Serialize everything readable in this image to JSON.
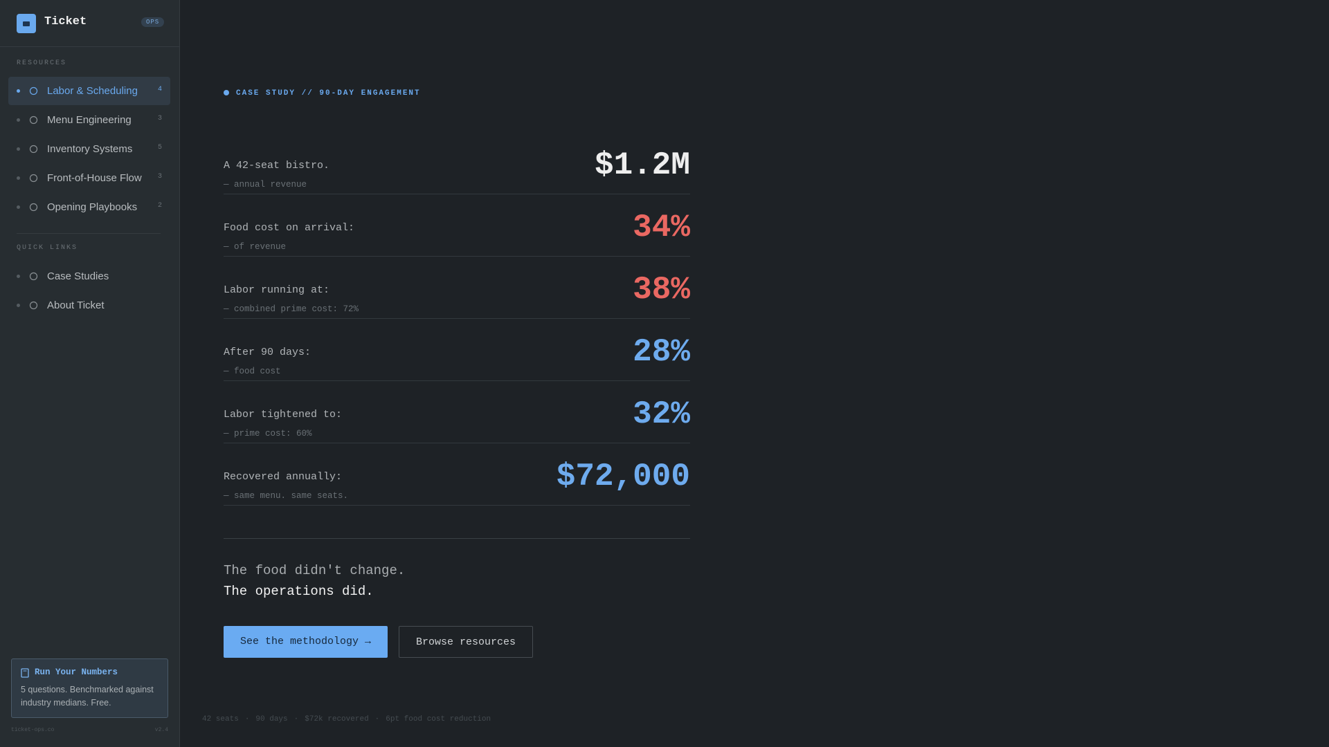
{
  "sidebar": {
    "brand": "Ticket",
    "badge": "OPS",
    "sections": [
      {
        "title": "RESOURCES",
        "items": [
          {
            "label": "Labor & Scheduling",
            "count": "4"
          },
          {
            "label": "Menu Engineering",
            "count": "3"
          },
          {
            "label": "Inventory Systems",
            "count": "5"
          },
          {
            "label": "Front-of-House Flow",
            "count": "3"
          },
          {
            "label": "Opening Playbooks",
            "count": "2"
          }
        ]
      },
      {
        "title": "QUICK LINKS",
        "items": [
          {
            "label": "Case Studies"
          },
          {
            "label": "About Ticket"
          }
        ]
      }
    ],
    "promo": {
      "title": "Run Your Numbers",
      "text": "5 questions. Benchmarked against industry medians. Free."
    },
    "footer": {
      "site": "ticket-ops.co",
      "version": "v2.4"
    }
  },
  "main": {
    "eyebrow": "CASE STUDY // 90-DAY ENGAGEMENT",
    "stats": [
      {
        "label": "A 42-seat bistro.",
        "sub": "— annual revenue",
        "value": "$1.2M"
      },
      {
        "label": "Food cost on arrival:",
        "sub": "— of revenue",
        "value": "34%"
      },
      {
        "label": "Labor running at:",
        "sub": "— combined prime cost: 72%",
        "value": "38%"
      },
      {
        "label": "After 90 days:",
        "sub": "— food cost",
        "value": "28%"
      },
      {
        "label": "Labor tightened to:",
        "sub": "— prime cost: 60%",
        "value": "32%"
      },
      {
        "label": "Recovered annually:",
        "sub": "— same menu. same seats.",
        "value": "$72,000"
      }
    ],
    "closing": [
      "The food didn't change.",
      "The operations did."
    ],
    "buttons": [
      "See the methodology →",
      "Browse resources"
    ],
    "footer": [
      "42 seats",
      "90 days",
      "$72k recovered",
      "6pt food cost reduction"
    ]
  }
}
